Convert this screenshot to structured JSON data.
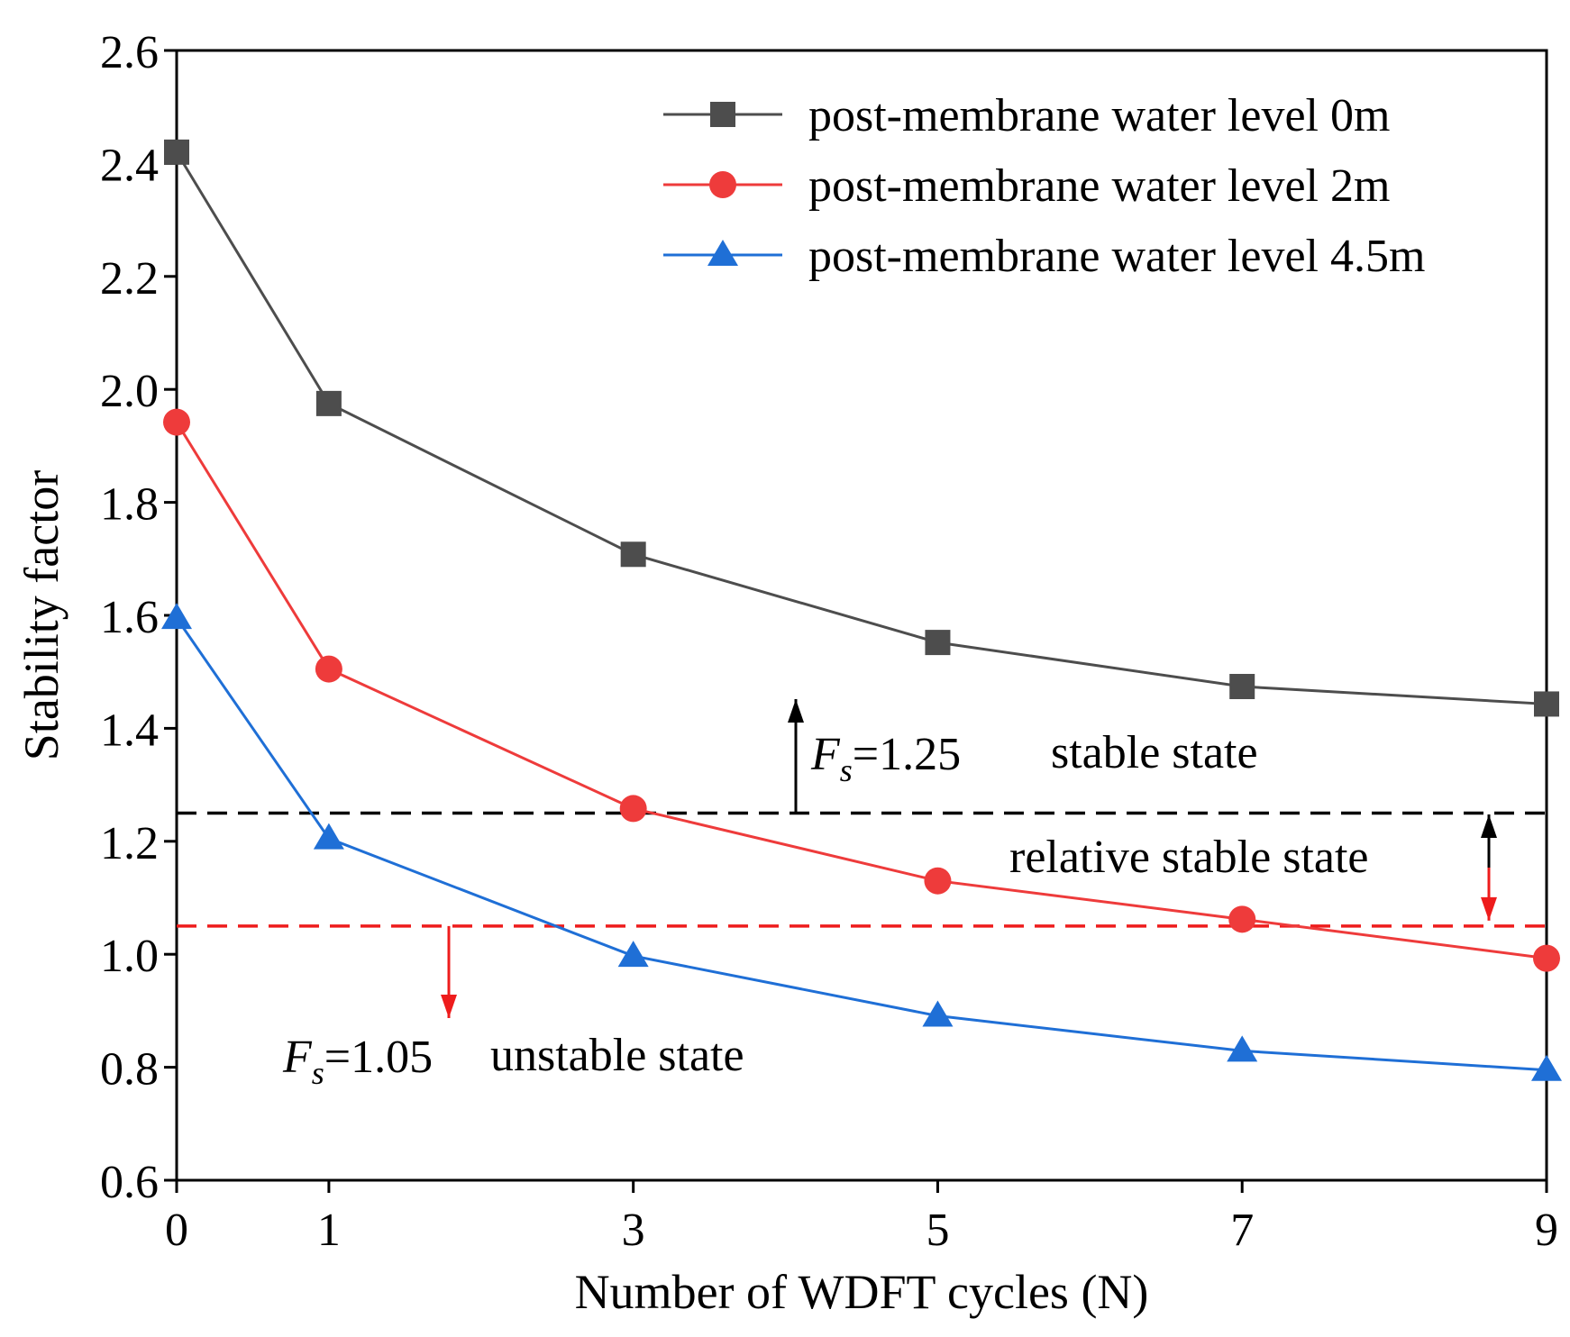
{
  "chart_data": {
    "type": "line",
    "xlabel": "Number of WDFT cycles (N)",
    "ylabel": "Stability factor",
    "x": [
      0,
      1,
      3,
      5,
      7,
      9
    ],
    "xticks": [
      "0",
      "1",
      "3",
      "5",
      "7",
      "9"
    ],
    "xlim": [
      0,
      9
    ],
    "ylim": [
      0.6,
      2.6
    ],
    "yticks": [
      "0.6",
      "0.8",
      "1.0",
      "1.2",
      "1.4",
      "1.6",
      "1.8",
      "2.0",
      "2.2",
      "2.4",
      "2.6"
    ],
    "grid": false,
    "legend_position": "top-right",
    "series": [
      {
        "name": "post-membrane water level 0m",
        "marker": "square",
        "color": "#4d4d4d",
        "values": [
          2.42,
          1.975,
          1.708,
          1.552,
          1.474,
          1.443
        ]
      },
      {
        "name": "post-membrane water level 2m",
        "marker": "circle",
        "color": "#ee3b3b",
        "values": [
          1.942,
          1.505,
          1.258,
          1.13,
          1.062,
          0.993
        ]
      },
      {
        "name": "post-membrane water level 4.5m",
        "marker": "triangle",
        "color": "#1f6fd6",
        "values": [
          1.595,
          1.205,
          0.997,
          0.891,
          0.829,
          0.795
        ]
      }
    ],
    "thresholds": [
      {
        "id": "fs125",
        "value": 1.25,
        "color": "#000000",
        "symbol": "F",
        "subscript": "s",
        "value_text": "=1.25",
        "state_label": "stable state"
      },
      {
        "id": "fs105",
        "value": 1.05,
        "color": "#ee1c1c",
        "symbol": "F",
        "subscript": "s",
        "value_text": "=1.05",
        "state_label": "unstable state"
      }
    ],
    "between_label": "relative stable state"
  }
}
